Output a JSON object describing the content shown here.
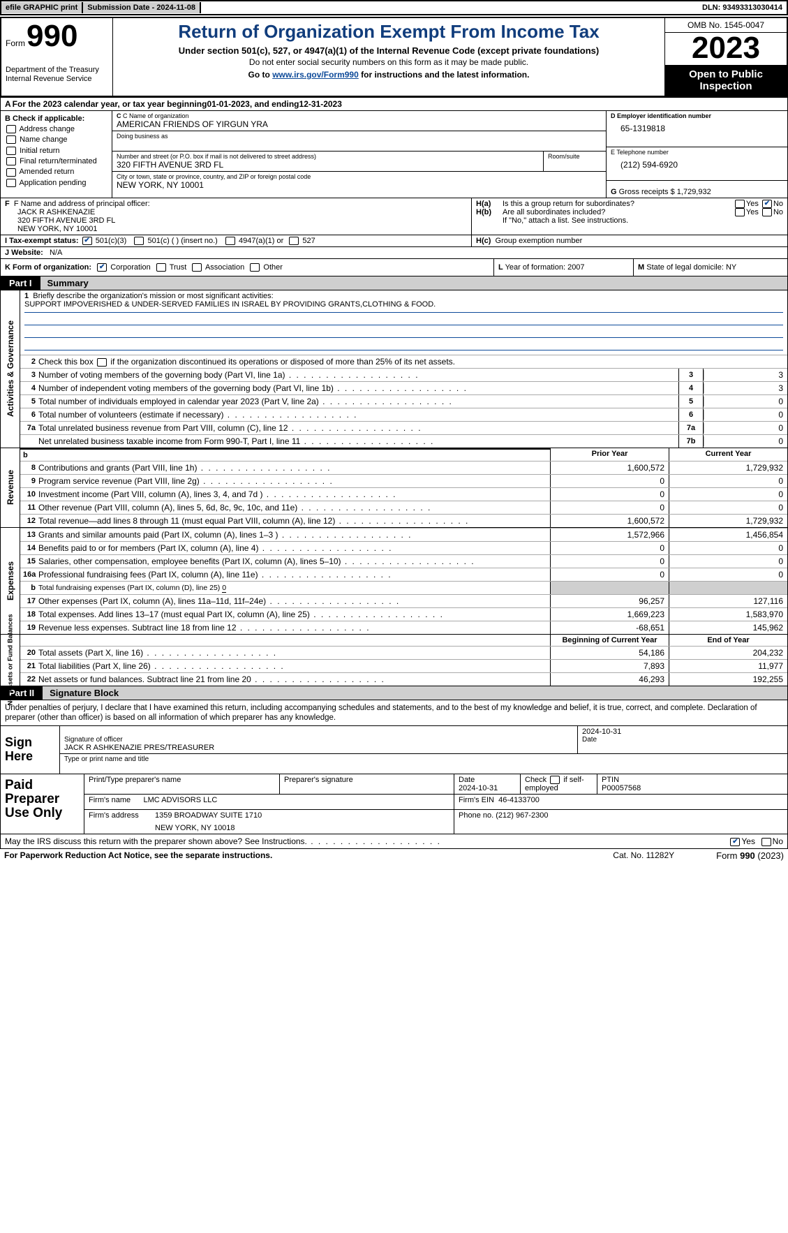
{
  "topbar": {
    "efile": "efile GRAPHIC print",
    "submission": "Submission Date - 2024-11-08",
    "dln": "DLN: 93493313030414"
  },
  "header": {
    "form_label": "Form",
    "form_number": "990",
    "title": "Return of Organization Exempt From Income Tax",
    "sub1": "Under section 501(c), 527, or 4947(a)(1) of the Internal Revenue Code (except private foundations)",
    "sub2": "Do not enter social security numbers on this form as it may be made public.",
    "sub3_prefix": "Go to ",
    "sub3_link": "www.irs.gov/Form990",
    "sub3_suffix": " for instructions and the latest information.",
    "dept1": "Department of the Treasury",
    "dept2": "Internal Revenue Service",
    "omb": "OMB No. 1545-0047",
    "year": "2023",
    "open2public": "Open to Public Inspection"
  },
  "taxyear": {
    "a_label": "A",
    "text1": "For the 2023 calendar year, or tax year beginning ",
    "begin": "01-01-2023",
    "text2": "  , and ending ",
    "end": "12-31-2023"
  },
  "B": {
    "hdr": "B Check if applicable:",
    "items": [
      "Address change",
      "Name change",
      "Initial return",
      "Final return/terminated",
      "Amended return",
      "Application pending"
    ]
  },
  "C": {
    "name_lbl": "C Name of organization",
    "name_val": "AMERICAN FRIENDS OF YIRGUN YRA",
    "dba_lbl": "Doing business as",
    "addr_lbl": "Number and street (or P.O. box if mail is not delivered to street address)",
    "room_lbl": "Room/suite",
    "addr_val": "320 FIFTH AVENUE 3RD FL",
    "city_lbl": "City or town, state or province, country, and ZIP or foreign postal code",
    "city_val": "NEW YORK, NY  10001"
  },
  "D": {
    "lbl": "D Employer identification number",
    "val": "65-1319818"
  },
  "E": {
    "lbl": "E Telephone number",
    "val": "(212) 594-6920"
  },
  "G": {
    "lbl": "G",
    "text": "Gross receipts $",
    "val": "1,729,932"
  },
  "F": {
    "lbl": "F  Name and address of principal officer:",
    "line1": "JACK R ASHKENAZIE",
    "line2": "320 FIFTH AVENUE 3RD FL",
    "line3": "NEW YORK, NY  10001"
  },
  "H": {
    "a": "Is this a group return for subordinates?",
    "b": "Are all subordinates included?",
    "note": "If \"No,\" attach a list. See instructions.",
    "c": "Group exemption number"
  },
  "I": {
    "lbl": "I    Tax-exempt status:",
    "opt1": "501(c)(3)",
    "opt2": "501(c) (  ) (insert no.)",
    "opt3": "4947(a)(1) or",
    "opt4": "527"
  },
  "J": {
    "lbl": "J    Website:",
    "val": "N/A"
  },
  "K": {
    "lbl": "K Form of organization:",
    "o1": "Corporation",
    "o2": "Trust",
    "o3": "Association",
    "o4": "Other"
  },
  "L": {
    "lbl": "L",
    "text": "Year of formation: 2007"
  },
  "M": {
    "lbl": "M",
    "text": "State of legal domicile: NY"
  },
  "part1": {
    "num": "Part I",
    "title": "Summary"
  },
  "part1_sections": {
    "activities_label": "Activities & Governance",
    "revenue_label": "Revenue",
    "expenses_label": "Expenses",
    "netassets_label": "Net Assets or Fund Balances"
  },
  "line1": {
    "n": "1",
    "prefix": "Briefly describe the organization's mission or most significant activities:",
    "text": "SUPPORT IMPOVERISHED & UNDER-SERVED FAMILIES IN ISRAEL BY PROVIDING GRANTS,CLOTHING & FOOD."
  },
  "line2": {
    "n": "2",
    "t": "Check this box   if the organization discontinued its operations or disposed of more than 25% of its net assets."
  },
  "lines_simple": [
    {
      "n": "3",
      "t": "Number of voting members of the governing body (Part VI, line 1a)",
      "box": "3",
      "v": "3"
    },
    {
      "n": "4",
      "t": "Number of independent voting members of the governing body (Part VI, line 1b)",
      "box": "4",
      "v": "3"
    },
    {
      "n": "5",
      "t": "Total number of individuals employed in calendar year 2023 (Part V, line 2a)",
      "box": "5",
      "v": "0"
    },
    {
      "n": "6",
      "t": "Total number of volunteers (estimate if necessary)",
      "box": "6",
      "v": "0"
    },
    {
      "n": "7a",
      "t": "Total unrelated business revenue from Part VIII, column (C), line 12",
      "box": "7a",
      "v": "0"
    },
    {
      "n": "",
      "t": "Net unrelated business taxable income from Form 990-T, Part I, line 11",
      "box": "7b",
      "v": "0"
    }
  ],
  "fin_headers": {
    "prior": "Prior Year",
    "current": "Current Year",
    "begin": "Beginning of Current Year",
    "end": "End of Year"
  },
  "revenue": [
    {
      "n": "8",
      "t": "Contributions and grants (Part VIII, line 1h)",
      "p": "1,600,572",
      "c": "1,729,932"
    },
    {
      "n": "9",
      "t": "Program service revenue (Part VIII, line 2g)",
      "p": "0",
      "c": "0"
    },
    {
      "n": "10",
      "t": "Investment income (Part VIII, column (A), lines 3, 4, and 7d )",
      "p": "0",
      "c": "0"
    },
    {
      "n": "11",
      "t": "Other revenue (Part VIII, column (A), lines 5, 6d, 8c, 9c, 10c, and 11e)",
      "p": "0",
      "c": "0"
    },
    {
      "n": "12",
      "t": "Total revenue—add lines 8 through 11 (must equal Part VIII, column (A), line 12)",
      "p": "1,600,572",
      "c": "1,729,932"
    }
  ],
  "expenses": [
    {
      "n": "13",
      "t": "Grants and similar amounts paid (Part IX, column (A), lines 1–3 )",
      "p": "1,572,966",
      "c": "1,456,854"
    },
    {
      "n": "14",
      "t": "Benefits paid to or for members (Part IX, column (A), line 4)",
      "p": "0",
      "c": "0"
    },
    {
      "n": "15",
      "t": "Salaries, other compensation, employee benefits (Part IX, column (A), lines 5–10)",
      "p": "0",
      "c": "0"
    },
    {
      "n": "16a",
      "t": "Professional fundraising fees (Part IX, column (A), line 11e)",
      "p": "0",
      "c": "0"
    }
  ],
  "exp16b": {
    "n": "b",
    "t": "Total fundraising expenses (Part IX, column (D), line 25)",
    "val": "0"
  },
  "expenses2": [
    {
      "n": "17",
      "t": "Other expenses (Part IX, column (A), lines 11a–11d, 11f–24e)",
      "p": "96,257",
      "c": "127,116"
    },
    {
      "n": "18",
      "t": "Total expenses. Add lines 13–17 (must equal Part IX, column (A), line 25)",
      "p": "1,669,223",
      "c": "1,583,970"
    },
    {
      "n": "19",
      "t": "Revenue less expenses. Subtract line 18 from line 12",
      "p": "-68,651",
      "c": "145,962"
    }
  ],
  "netassets": [
    {
      "n": "20",
      "t": "Total assets (Part X, line 16)",
      "p": "54,186",
      "c": "204,232"
    },
    {
      "n": "21",
      "t": "Total liabilities (Part X, line 26)",
      "p": "7,893",
      "c": "11,977"
    },
    {
      "n": "22",
      "t": "Net assets or fund balances. Subtract line 21 from line 20",
      "p": "46,293",
      "c": "192,255"
    }
  ],
  "part2": {
    "num": "Part II",
    "title": "Signature Block"
  },
  "perjury": "Under penalties of perjury, I declare that I have examined this return, including accompanying schedules and statements, and to the best of my knowledge and belief, it is true, correct, and complete. Declaration of preparer (other than officer) is based on all information of which preparer has any knowledge.",
  "sign": {
    "lbl": "Sign Here",
    "sig_lbl": "Signature of officer",
    "date_lbl": "Date",
    "date_val": "2024-10-31",
    "name_lbl": "Type or print name and title",
    "name_val": "JACK R ASHKENAZIE  PRES/TREASURER"
  },
  "prep": {
    "lbl": "Paid Preparer Use Only",
    "h1": "Print/Type preparer's name",
    "h2": "Preparer's signature",
    "h3": "Date",
    "h3v": "2024-10-31",
    "h4pre": "Check",
    "h4post": "if self-employed",
    "h5": "PTIN",
    "h5v": "P00057568",
    "firm_lbl": "Firm's name",
    "firm_val": "LMC ADVISORS LLC",
    "ein_lbl": "Firm's EIN",
    "ein_val": "46-4133700",
    "addr_lbl": "Firm's address",
    "addr_val1": "1359 BROADWAY SUITE 1710",
    "addr_val2": "NEW YORK, NY  10018",
    "phone_lbl": "Phone no.",
    "phone_val": "(212) 967-2300"
  },
  "discuss": {
    "text": "May the IRS discuss this return with the preparer shown above? See Instructions."
  },
  "footer": {
    "l": "For Paperwork Reduction Act Notice, see the separate instructions.",
    "c": "Cat. No. 11282Y",
    "r_pre": "Form ",
    "r_num": "990",
    "r_suf": " (2023)"
  }
}
